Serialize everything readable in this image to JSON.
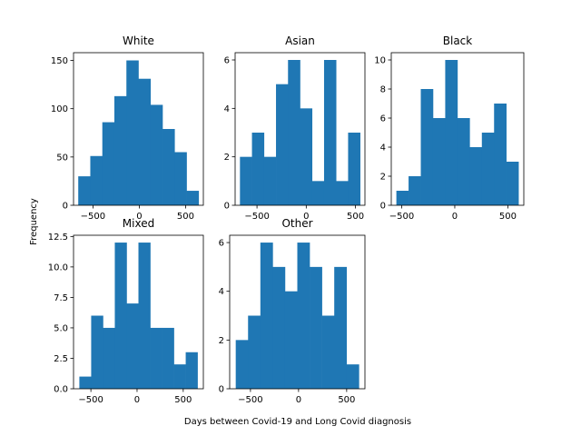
{
  "figure": {
    "ylabel": "Frequency",
    "xlabel": "Days between Covid-19 and Long Covid diagnosis"
  },
  "chart_data": [
    {
      "type": "bar",
      "title": "White",
      "bin_edges": [
        -659,
        -529,
        -399,
        -269,
        -139,
        -9,
        121,
        251,
        381,
        511,
        641
      ],
      "values": [
        30,
        51,
        86,
        113,
        150,
        131,
        104,
        79,
        55,
        15
      ],
      "xlim": [
        -710,
        692
      ],
      "ylim": [
        0,
        158
      ],
      "xticks": [
        -500,
        0,
        500
      ],
      "xtick_labels": [
        "−500",
        "0",
        "500"
      ],
      "yticks": [
        0,
        50,
        100,
        150
      ],
      "ytick_labels": [
        "0",
        "50",
        "100",
        "150"
      ],
      "color": "#1f77b4"
    },
    {
      "type": "bar",
      "title": "Asian",
      "bin_edges": [
        -673,
        -551,
        -429,
        -307,
        -185,
        -63,
        59,
        181,
        303,
        425,
        547
      ],
      "values": [
        2,
        3,
        2,
        5,
        6,
        4,
        1,
        6,
        1,
        3
      ],
      "xlim": [
        -722,
        596
      ],
      "ylim": [
        0,
        6.3
      ],
      "xticks": [
        -500,
        0,
        500
      ],
      "xtick_labels": [
        "−500",
        "0",
        "500"
      ],
      "yticks": [
        0,
        2,
        4,
        6
      ],
      "ytick_labels": [
        "0",
        "2",
        "4",
        "6"
      ],
      "color": "#1f77b4"
    },
    {
      "type": "bar",
      "title": "Black",
      "bin_edges": [
        -550,
        -435,
        -320,
        -205,
        -90,
        25,
        140,
        255,
        370,
        485,
        600
      ],
      "values": [
        1,
        2,
        8,
        6,
        10,
        6,
        4,
        5,
        7,
        3
      ],
      "xlim": [
        -598,
        650
      ],
      "ylim": [
        0,
        10.5
      ],
      "xticks": [
        -500,
        0,
        500
      ],
      "xtick_labels": [
        "−500",
        "0",
        "500"
      ],
      "yticks": [
        0,
        2,
        4,
        6,
        8,
        10
      ],
      "ytick_labels": [
        "0",
        "2",
        "4",
        "6",
        "8",
        "10"
      ],
      "color": "#1f77b4"
    },
    {
      "type": "bar",
      "title": "Mixed",
      "bin_edges": [
        -625,
        -497,
        -369,
        -241,
        -113,
        15,
        143,
        271,
        399,
        527,
        655
      ],
      "values": [
        1,
        6,
        5,
        12,
        7,
        12,
        5,
        5,
        2,
        3
      ],
      "xlim": [
        -688,
        718
      ],
      "ylim": [
        0,
        12.6
      ],
      "xticks": [
        -500,
        0,
        500
      ],
      "xtick_labels": [
        "−500",
        "0",
        "500"
      ],
      "yticks": [
        0,
        2.5,
        5.0,
        7.5,
        10.0,
        12.5
      ],
      "ytick_labels": [
        "0.0",
        "2.5",
        "5.0",
        "7.5",
        "10.0",
        "12.5"
      ],
      "color": "#1f77b4"
    },
    {
      "type": "bar",
      "title": "Other",
      "bin_edges": [
        -653,
        -525,
        -397,
        -269,
        -141,
        -13,
        115,
        243,
        371,
        499,
        627
      ],
      "values": [
        2,
        3,
        6,
        5,
        4,
        6,
        5,
        3,
        5,
        1
      ],
      "xlim": [
        -716,
        690
      ],
      "ylim": [
        0,
        6.3
      ],
      "xticks": [
        -500,
        0,
        500
      ],
      "xtick_labels": [
        "−500",
        "0",
        "500"
      ],
      "yticks": [
        0,
        2,
        4,
        6
      ],
      "ytick_labels": [
        "0",
        "2",
        "4",
        "6"
      ],
      "color": "#1f77b4"
    }
  ]
}
